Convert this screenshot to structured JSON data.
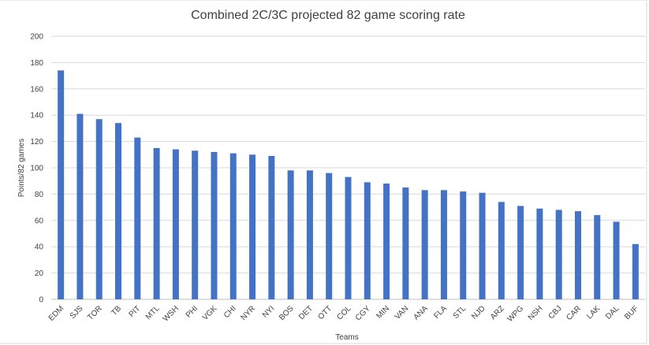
{
  "chart_data": {
    "type": "bar",
    "title": "Combined 2C/3C projected 82 game scoring rate",
    "xlabel": "Teams",
    "ylabel": "Points/82 games",
    "ylim": [
      0,
      200
    ],
    "yticks": [
      0,
      20,
      40,
      60,
      80,
      100,
      120,
      140,
      160,
      180,
      200
    ],
    "grid": true,
    "legend": "none",
    "bar_color": "#4472c4",
    "categories": [
      "EDM",
      "SJS",
      "TOR",
      "TB",
      "PIT",
      "MTL",
      "WSH",
      "PHI",
      "VGK",
      "CHI",
      "NYR",
      "NYI",
      "BOS",
      "DET",
      "OTT",
      "COL",
      "CGY",
      "MIN",
      "VAN",
      "ANA",
      "FLA",
      "STL",
      "NJD",
      "ARZ",
      "WPG",
      "NSH",
      "CBJ",
      "CAR",
      "LAK",
      "DAL",
      "BUF"
    ],
    "values": [
      174,
      141,
      137,
      134,
      123,
      115,
      114,
      113,
      112,
      111,
      110,
      109,
      98,
      98,
      96,
      93,
      89,
      88,
      85,
      83,
      83,
      82,
      81,
      74,
      71,
      69,
      68,
      67,
      64,
      59,
      42
    ]
  }
}
